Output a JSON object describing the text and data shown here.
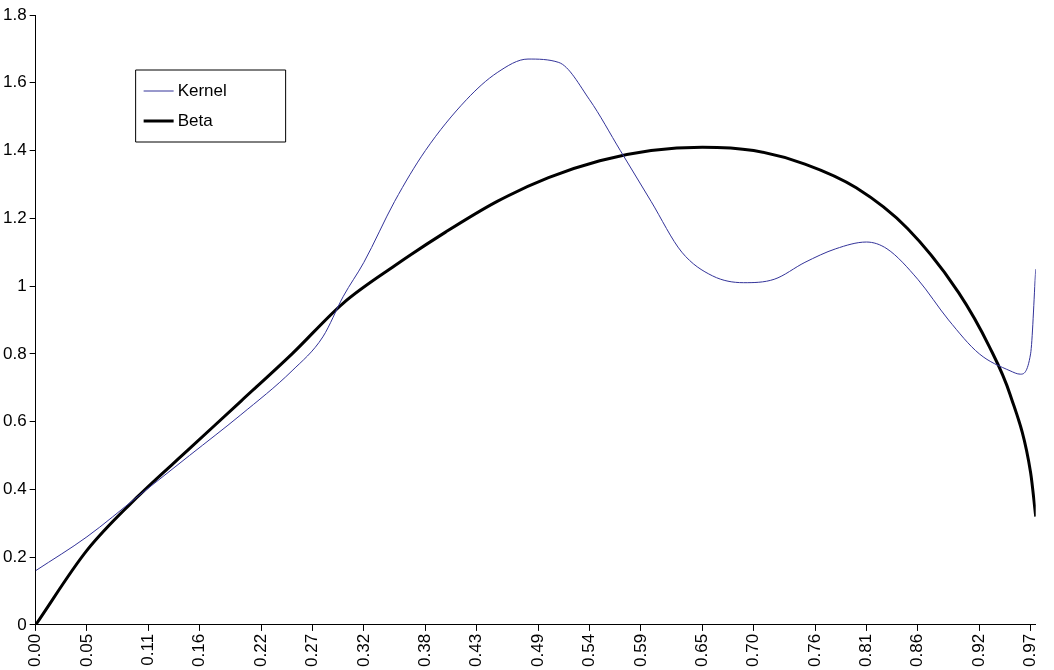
{
  "chart_data": {
    "type": "line",
    "xlim": [
      0,
      0.975
    ],
    "ylim": [
      0,
      1.8
    ],
    "xticks": [
      {
        "value": 0,
        "label": "0.00"
      },
      0.05,
      0.11,
      0.16,
      0.22,
      0.27,
      0.32,
      0.38,
      0.43,
      0.49,
      0.54,
      0.59,
      0.65,
      {
        "value": 0.7,
        "label": "0.70"
      },
      0.76,
      0.81,
      0.86,
      0.92,
      0.97
    ],
    "yticks": [
      0,
      0.2,
      0.4,
      0.6,
      0.8,
      1,
      1.2,
      1.4,
      1.6,
      1.8
    ],
    "grid": false,
    "legend": "top left",
    "marker": "none",
    "line_style": "solid",
    "series": [
      {
        "name": "Kernel",
        "color": "#333399",
        "x": [
          0,
          0.05,
          0.1,
          0.15,
          0.2,
          0.25,
          0.28,
          0.3,
          0.32,
          0.35,
          0.38,
          0.42,
          0.45,
          0.48,
          0.51,
          0.54,
          0.57,
          0.6,
          0.63,
          0.66,
          0.69,
          0.72,
          0.75,
          0.78,
          0.81,
          0.83,
          0.86,
          0.89,
          0.92,
          0.95,
          0.96,
          0.97,
          0.975
        ],
        "values": [
          0.16,
          0.26,
          0.38,
          0.5,
          0.62,
          0.75,
          0.85,
          0.97,
          1.07,
          1.25,
          1.4,
          1.55,
          1.63,
          1.67,
          1.66,
          1.55,
          1.4,
          1.25,
          1.1,
          1.03,
          1.01,
          1.02,
          1.07,
          1.11,
          1.13,
          1.11,
          1.02,
          0.9,
          0.8,
          0.75,
          0.74,
          0.8,
          1.05
        ]
      },
      {
        "name": "Beta",
        "color": "#000000",
        "x": [
          0,
          0.05,
          0.1,
          0.15,
          0.2,
          0.25,
          0.3,
          0.35,
          0.4,
          0.45,
          0.5,
          0.55,
          0.6,
          0.65,
          0.7,
          0.75,
          0.8,
          0.85,
          0.9,
          0.93,
          0.95,
          0.97,
          0.975
        ],
        "values": [
          0,
          0.22,
          0.38,
          0.52,
          0.66,
          0.8,
          0.95,
          1.06,
          1.16,
          1.25,
          1.32,
          1.37,
          1.4,
          1.41,
          1.4,
          1.36,
          1.29,
          1.17,
          0.98,
          0.82,
          0.68,
          0.45,
          0.32
        ]
      }
    ]
  }
}
